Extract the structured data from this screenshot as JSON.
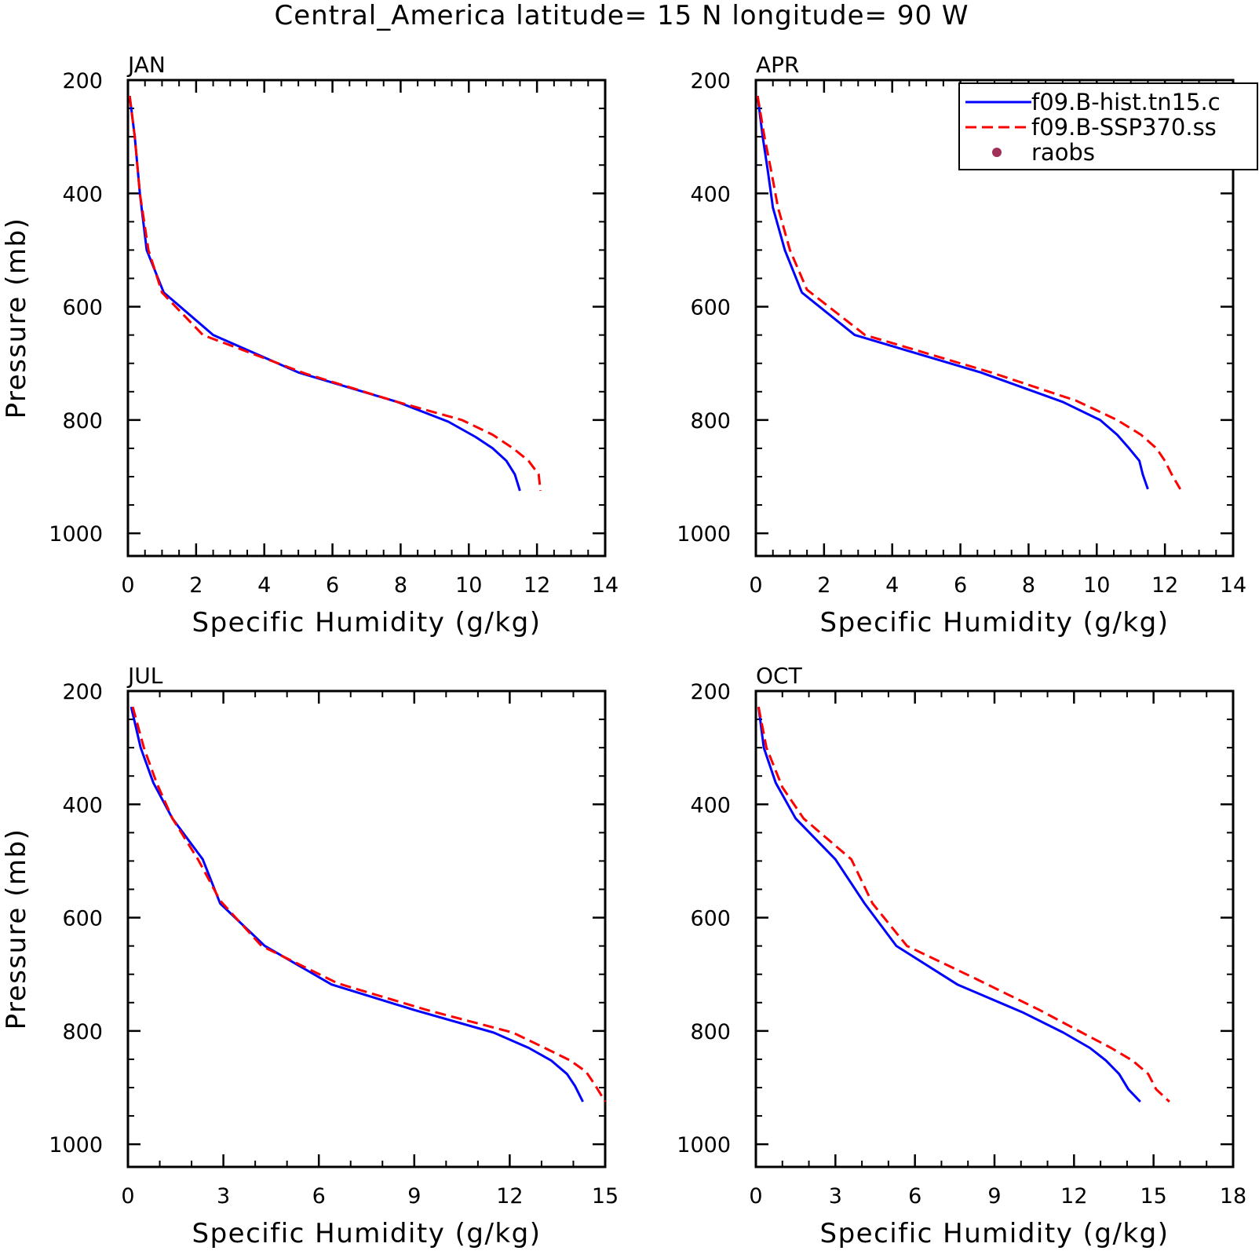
{
  "title": "Central_America  latitude= 15 N longitude= 90 W",
  "legend": {
    "entries": [
      {
        "label": "f09.B-hist.tn15.c",
        "style": "solid",
        "color": "#0000ff"
      },
      {
        "label": "f09.B-SSP370.ss",
        "style": "dashed",
        "color": "#ff0000"
      },
      {
        "label": "raobs",
        "style": "dot",
        "color": "#a0305a"
      }
    ]
  },
  "chart_data": [
    {
      "type": "line",
      "panel": "JAN",
      "xlabel": "Specific Humidity (g/kg)",
      "ylabel": "Pressure (mb)",
      "xlim": [
        0,
        14
      ],
      "ylim": [
        1000,
        200
      ],
      "y_inverted": true,
      "xticks": [
        0,
        2,
        4,
        6,
        8,
        10,
        12,
        14
      ],
      "yticks": [
        200,
        400,
        600,
        800,
        1000
      ],
      "series": [
        {
          "name": "f09.B-hist.tn15.c",
          "color": "#0000ff",
          "style": "solid",
          "points": [
            [
              0.05,
              228
            ],
            [
              0.2,
              300
            ],
            [
              0.35,
              400
            ],
            [
              0.55,
              500
            ],
            [
              1.05,
              575
            ],
            [
              2.5,
              650
            ],
            [
              5.0,
              716
            ],
            [
              7.9,
              768
            ],
            [
              9.4,
              803
            ],
            [
              10.2,
              830
            ],
            [
              10.7,
              850
            ],
            [
              11.1,
              872
            ],
            [
              11.35,
              896
            ],
            [
              11.5,
              925
            ]
          ]
        },
        {
          "name": "f09.B-SSP370.ss",
          "color": "#ff0000",
          "style": "dashed",
          "points": [
            [
              0.05,
              228
            ],
            [
              0.2,
              300
            ],
            [
              0.35,
              400
            ],
            [
              0.6,
              500
            ],
            [
              1.0,
              575
            ],
            [
              2.2,
              650
            ],
            [
              5.2,
              718
            ],
            [
              7.9,
              768
            ],
            [
              9.8,
              800
            ],
            [
              10.7,
              826
            ],
            [
              11.3,
              850
            ],
            [
              11.75,
              872
            ],
            [
              12.05,
              896
            ],
            [
              12.1,
              925
            ]
          ]
        }
      ]
    },
    {
      "type": "line",
      "panel": "APR",
      "xlabel": "Specific Humidity (g/kg)",
      "ylabel": "",
      "xlim": [
        0,
        14
      ],
      "ylim": [
        1000,
        200
      ],
      "y_inverted": true,
      "xticks": [
        0,
        2,
        4,
        6,
        8,
        10,
        12,
        14
      ],
      "yticks": [
        200,
        400,
        600,
        800,
        1000
      ],
      "series": [
        {
          "name": "f09.B-hist.tn15.c",
          "color": "#0000ff",
          "style": "solid",
          "points": [
            [
              0.05,
              228
            ],
            [
              0.2,
              300
            ],
            [
              0.35,
              360
            ],
            [
              0.5,
              425
            ],
            [
              0.85,
              500
            ],
            [
              1.35,
              575
            ],
            [
              2.9,
              650
            ],
            [
              6.6,
              716
            ],
            [
              9.0,
              768
            ],
            [
              10.1,
              800
            ],
            [
              10.6,
              826
            ],
            [
              10.95,
              850
            ],
            [
              11.25,
              872
            ],
            [
              11.35,
              896
            ],
            [
              11.5,
              922
            ]
          ]
        },
        {
          "name": "f09.B-SSP370.ss",
          "color": "#ff0000",
          "style": "dashed",
          "points": [
            [
              0.05,
              228
            ],
            [
              0.25,
              300
            ],
            [
              0.45,
              360
            ],
            [
              0.65,
              425
            ],
            [
              1.0,
              500
            ],
            [
              1.5,
              570
            ],
            [
              3.2,
              650
            ],
            [
              6.9,
              716
            ],
            [
              9.4,
              766
            ],
            [
              10.6,
              800
            ],
            [
              11.3,
              826
            ],
            [
              11.75,
              850
            ],
            [
              12.0,
              872
            ],
            [
              12.2,
              896
            ],
            [
              12.45,
              922
            ]
          ]
        }
      ]
    },
    {
      "type": "line",
      "panel": "JUL",
      "xlabel": "Specific Humidity (g/kg)",
      "ylabel": "Pressure (mb)",
      "xlim": [
        0,
        15
      ],
      "ylim": [
        1000,
        200
      ],
      "y_inverted": true,
      "xticks": [
        0,
        3,
        6,
        9,
        12,
        15
      ],
      "yticks": [
        200,
        400,
        600,
        800,
        1000
      ],
      "series": [
        {
          "name": "f09.B-hist.tn15.c",
          "color": "#0000ff",
          "style": "solid",
          "points": [
            [
              0.1,
              228
            ],
            [
              0.4,
              300
            ],
            [
              0.8,
              362
            ],
            [
              1.4,
              425
            ],
            [
              2.35,
              497
            ],
            [
              2.9,
              575
            ],
            [
              4.3,
              650
            ],
            [
              6.4,
              718
            ],
            [
              9.0,
              763
            ],
            [
              11.5,
              803
            ],
            [
              12.6,
              830
            ],
            [
              13.3,
              852
            ],
            [
              13.8,
              876
            ],
            [
              14.05,
              897
            ],
            [
              14.3,
              925
            ]
          ]
        },
        {
          "name": "f09.B-SSP370.ss",
          "color": "#ff0000",
          "style": "dashed",
          "points": [
            [
              0.15,
              228
            ],
            [
              0.5,
              300
            ],
            [
              0.9,
              362
            ],
            [
              1.4,
              425
            ],
            [
              2.2,
              497
            ],
            [
              2.9,
              570
            ],
            [
              4.2,
              650
            ],
            [
              6.6,
              716
            ],
            [
              9.4,
              763
            ],
            [
              12.1,
              803
            ],
            [
              13.1,
              830
            ],
            [
              13.9,
              852
            ],
            [
              14.4,
              872
            ],
            [
              14.7,
              897
            ],
            [
              15.0,
              925
            ]
          ]
        }
      ]
    },
    {
      "type": "line",
      "panel": "OCT",
      "xlabel": "Specific Humidity (g/kg)",
      "ylabel": "",
      "xlim": [
        0,
        18
      ],
      "ylim": [
        1000,
        200
      ],
      "y_inverted": true,
      "xticks": [
        0,
        3,
        6,
        9,
        12,
        15,
        18
      ],
      "yticks": [
        200,
        400,
        600,
        800,
        1000
      ],
      "series": [
        {
          "name": "f09.B-hist.tn15.c",
          "color": "#0000ff",
          "style": "solid",
          "points": [
            [
              0.1,
              228
            ],
            [
              0.3,
              300
            ],
            [
              0.75,
              362
            ],
            [
              1.5,
              425
            ],
            [
              3.0,
              497
            ],
            [
              4.1,
              575
            ],
            [
              5.3,
              650
            ],
            [
              7.6,
              718
            ],
            [
              10.1,
              768
            ],
            [
              11.6,
              803
            ],
            [
              12.6,
              830
            ],
            [
              13.2,
              852
            ],
            [
              13.7,
              876
            ],
            [
              14.05,
              903
            ],
            [
              14.5,
              925
            ]
          ]
        },
        {
          "name": "f09.B-SSP370.ss",
          "color": "#ff0000",
          "style": "dashed",
          "points": [
            [
              0.1,
              228
            ],
            [
              0.4,
              300
            ],
            [
              1.0,
              370
            ],
            [
              1.8,
              425
            ],
            [
              3.6,
              497
            ],
            [
              4.4,
              575
            ],
            [
              5.7,
              650
            ],
            [
              8.3,
              708
            ],
            [
              10.7,
              763
            ],
            [
              12.3,
              803
            ],
            [
              13.4,
              830
            ],
            [
              14.2,
              852
            ],
            [
              14.8,
              876
            ],
            [
              15.1,
              903
            ],
            [
              15.6,
              925
            ]
          ]
        }
      ]
    }
  ]
}
